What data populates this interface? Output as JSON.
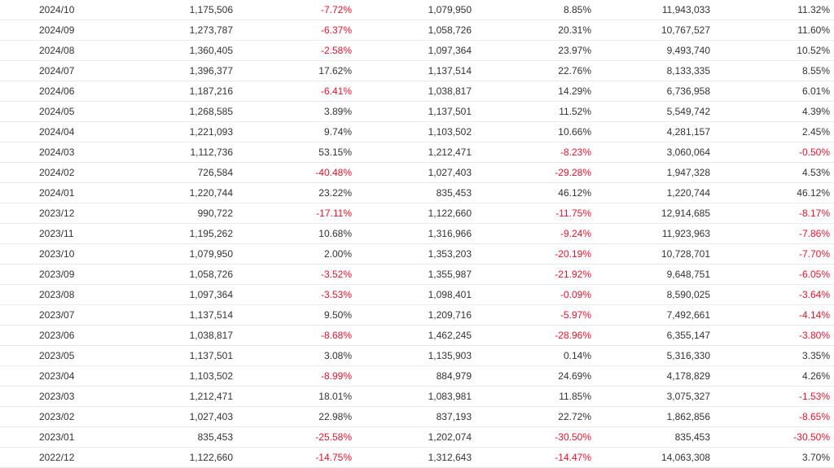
{
  "rows": [
    {
      "month": "2024/10",
      "sales": "1,175,506",
      "mom": "-7.72%",
      "prev_year": "1,079,950",
      "yoy": "8.85%",
      "cumulative": "11,943,033",
      "cum_yoy": "11.32%"
    },
    {
      "month": "2024/09",
      "sales": "1,273,787",
      "mom": "-6.37%",
      "prev_year": "1,058,726",
      "yoy": "20.31%",
      "cumulative": "10,767,527",
      "cum_yoy": "11.60%"
    },
    {
      "month": "2024/08",
      "sales": "1,360,405",
      "mom": "-2.58%",
      "prev_year": "1,097,364",
      "yoy": "23.97%",
      "cumulative": "9,493,740",
      "cum_yoy": "10.52%"
    },
    {
      "month": "2024/07",
      "sales": "1,396,377",
      "mom": "17.62%",
      "prev_year": "1,137,514",
      "yoy": "22.76%",
      "cumulative": "8,133,335",
      "cum_yoy": "8.55%"
    },
    {
      "month": "2024/06",
      "sales": "1,187,216",
      "mom": "-6.41%",
      "prev_year": "1,038,817",
      "yoy": "14.29%",
      "cumulative": "6,736,958",
      "cum_yoy": "6.01%"
    },
    {
      "month": "2024/05",
      "sales": "1,268,585",
      "mom": "3.89%",
      "prev_year": "1,137,501",
      "yoy": "11.52%",
      "cumulative": "5,549,742",
      "cum_yoy": "4.39%"
    },
    {
      "month": "2024/04",
      "sales": "1,221,093",
      "mom": "9.74%",
      "prev_year": "1,103,502",
      "yoy": "10.66%",
      "cumulative": "4,281,157",
      "cum_yoy": "2.45%"
    },
    {
      "month": "2024/03",
      "sales": "1,112,736",
      "mom": "53.15%",
      "prev_year": "1,212,471",
      "yoy": "-8.23%",
      "cumulative": "3,060,064",
      "cum_yoy": "-0.50%"
    },
    {
      "month": "2024/02",
      "sales": "726,584",
      "mom": "-40.48%",
      "prev_year": "1,027,403",
      "yoy": "-29.28%",
      "cumulative": "1,947,328",
      "cum_yoy": "4.53%"
    },
    {
      "month": "2024/01",
      "sales": "1,220,744",
      "mom": "23.22%",
      "prev_year": "835,453",
      "yoy": "46.12%",
      "cumulative": "1,220,744",
      "cum_yoy": "46.12%"
    },
    {
      "month": "2023/12",
      "sales": "990,722",
      "mom": "-17.11%",
      "prev_year": "1,122,660",
      "yoy": "-11.75%",
      "cumulative": "12,914,685",
      "cum_yoy": "-8.17%"
    },
    {
      "month": "2023/11",
      "sales": "1,195,262",
      "mom": "10.68%",
      "prev_year": "1,316,966",
      "yoy": "-9.24%",
      "cumulative": "11,923,963",
      "cum_yoy": "-7.86%"
    },
    {
      "month": "2023/10",
      "sales": "1,079,950",
      "mom": "2.00%",
      "prev_year": "1,353,203",
      "yoy": "-20.19%",
      "cumulative": "10,728,701",
      "cum_yoy": "-7.70%"
    },
    {
      "month": "2023/09",
      "sales": "1,058,726",
      "mom": "-3.52%",
      "prev_year": "1,355,987",
      "yoy": "-21.92%",
      "cumulative": "9,648,751",
      "cum_yoy": "-6.05%"
    },
    {
      "month": "2023/08",
      "sales": "1,097,364",
      "mom": "-3.53%",
      "prev_year": "1,098,401",
      "yoy": "-0.09%",
      "cumulative": "8,590,025",
      "cum_yoy": "-3.64%"
    },
    {
      "month": "2023/07",
      "sales": "1,137,514",
      "mom": "9.50%",
      "prev_year": "1,209,716",
      "yoy": "-5.97%",
      "cumulative": "7,492,661",
      "cum_yoy": "-4.14%"
    },
    {
      "month": "2023/06",
      "sales": "1,038,817",
      "mom": "-8.68%",
      "prev_year": "1,462,245",
      "yoy": "-28.96%",
      "cumulative": "6,355,147",
      "cum_yoy": "-3.80%"
    },
    {
      "month": "2023/05",
      "sales": "1,137,501",
      "mom": "3.08%",
      "prev_year": "1,135,903",
      "yoy": "0.14%",
      "cumulative": "5,316,330",
      "cum_yoy": "3.35%"
    },
    {
      "month": "2023/04",
      "sales": "1,103,502",
      "mom": "-8.99%",
      "prev_year": "884,979",
      "yoy": "24.69%",
      "cumulative": "4,178,829",
      "cum_yoy": "4.26%"
    },
    {
      "month": "2023/03",
      "sales": "1,212,471",
      "mom": "18.01%",
      "prev_year": "1,083,981",
      "yoy": "11.85%",
      "cumulative": "3,075,327",
      "cum_yoy": "-1.53%"
    },
    {
      "month": "2023/02",
      "sales": "1,027,403",
      "mom": "22.98%",
      "prev_year": "837,193",
      "yoy": "22.72%",
      "cumulative": "1,862,856",
      "cum_yoy": "-8.65%"
    },
    {
      "month": "2023/01",
      "sales": "835,453",
      "mom": "-25.58%",
      "prev_year": "1,202,074",
      "yoy": "-30.50%",
      "cumulative": "835,453",
      "cum_yoy": "-30.50%"
    },
    {
      "month": "2022/12",
      "sales": "1,122,660",
      "mom": "-14.75%",
      "prev_year": "1,312,643",
      "yoy": "-14.47%",
      "cumulative": "14,063,308",
      "cum_yoy": "3.70%"
    }
  ],
  "colors": {
    "negative": "#e5152e",
    "text": "#333333",
    "divider": "#e8e8e8"
  }
}
